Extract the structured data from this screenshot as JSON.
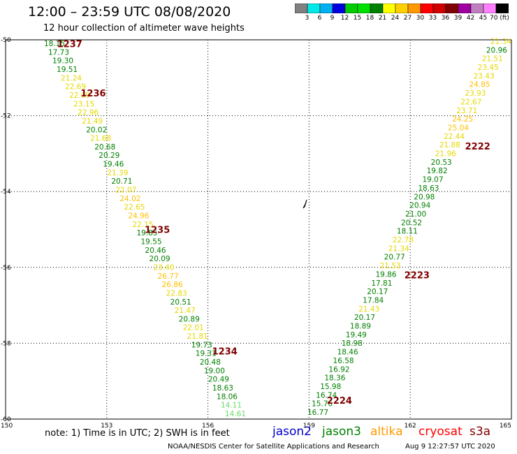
{
  "title": "12:00 – 23:59 UTC 08/08/2020",
  "subtitle": "12 hour collection of altimeter wave heights",
  "colorbar": {
    "colors": [
      "#808080",
      "#00e8e8",
      "#00b0f0",
      "#0000e0",
      "#00cc00",
      "#00e000",
      "#008000",
      "#ffff00",
      "#ffd000",
      "#ff9900",
      "#ff0000",
      "#d00000",
      "#800000",
      "#a000a0",
      "#c080c0",
      "#ff80ff",
      "#000000"
    ],
    "labels": [
      "3",
      "6",
      "9",
      "12",
      "15",
      "18",
      "21",
      "24",
      "27",
      "30",
      "33",
      "36",
      "39",
      "42",
      "45",
      "70 (ft)"
    ]
  },
  "axes": {
    "x_ticks": [
      "150",
      "153",
      "156",
      "159",
      "162",
      "165"
    ],
    "y_ticks": [
      "-50",
      "-52",
      "-54",
      "-56",
      "-58",
      "-60"
    ]
  },
  "track_colors": {
    "green": "#008000",
    "light_green": "#66dd66",
    "yellow": "#e6d800",
    "orange": "#ffc000",
    "maroon": "#800000"
  },
  "pass_labels": [
    {
      "text": "1237",
      "lon": 151.9,
      "lat": -50.1
    },
    {
      "text": "1236",
      "lon": 152.6,
      "lat": -51.4
    },
    {
      "text": "1235",
      "lon": 154.5,
      "lat": -55.0
    },
    {
      "text": "1234",
      "lon": 156.5,
      "lat": -58.2
    },
    {
      "text": "2222",
      "lon": 164.0,
      "lat": -52.8
    },
    {
      "text": "2223",
      "lon": 162.2,
      "lat": -56.2
    },
    {
      "text": "2224",
      "lon": 159.9,
      "lat": -59.5
    }
  ],
  "west_track": [
    {
      "v": "18.15",
      "c": "green"
    },
    {
      "v": "17.73",
      "c": "green"
    },
    {
      "v": "19.30",
      "c": "green"
    },
    {
      "v": "19.51",
      "c": "green"
    },
    {
      "v": "21.24",
      "c": "yellow"
    },
    {
      "v": "22.69",
      "c": "yellow"
    },
    {
      "v": "22.09",
      "c": "yellow"
    },
    {
      "v": "23.15",
      "c": "yellow"
    },
    {
      "v": "22.96",
      "c": "yellow"
    },
    {
      "v": "21.49",
      "c": "yellow"
    },
    {
      "v": "20.02",
      "c": "green"
    },
    {
      "v": "21.68",
      "c": "yellow"
    },
    {
      "v": "20.68",
      "c": "green"
    },
    {
      "v": "20.29",
      "c": "green"
    },
    {
      "v": "19.46",
      "c": "green"
    },
    {
      "v": "21.39",
      "c": "yellow"
    },
    {
      "v": "20.71",
      "c": "green"
    },
    {
      "v": "22.07",
      "c": "yellow"
    },
    {
      "v": "24.02",
      "c": "orange"
    },
    {
      "v": "22.65",
      "c": "yellow"
    },
    {
      "v": "24.96",
      "c": "orange"
    },
    {
      "v": "22.15",
      "c": "yellow"
    },
    {
      "v": "19.85",
      "c": "green"
    },
    {
      "v": "19.55",
      "c": "green"
    },
    {
      "v": "20.46",
      "c": "green"
    },
    {
      "v": "20.09",
      "c": "green"
    },
    {
      "v": "23.40",
      "c": "yellow"
    },
    {
      "v": "26.77",
      "c": "orange"
    },
    {
      "v": "26.86",
      "c": "orange"
    },
    {
      "v": "22.83",
      "c": "yellow"
    },
    {
      "v": "20.51",
      "c": "green"
    },
    {
      "v": "21.47",
      "c": "yellow"
    },
    {
      "v": "20.89",
      "c": "green"
    },
    {
      "v": "22.01",
      "c": "yellow"
    },
    {
      "v": "21.81",
      "c": "yellow"
    },
    {
      "v": "19.73",
      "c": "green"
    },
    {
      "v": "19.31",
      "c": "green"
    },
    {
      "v": "20.48",
      "c": "green"
    },
    {
      "v": "19.00",
      "c": "green"
    },
    {
      "v": "20.49",
      "c": "green"
    },
    {
      "v": "18.63",
      "c": "green"
    },
    {
      "v": "18.06",
      "c": "green"
    },
    {
      "v": "14.11",
      "c": "light_green"
    },
    {
      "v": "14.61",
      "c": "light_green"
    }
  ],
  "east_track": [
    {
      "v": "21.34",
      "c": "yellow"
    },
    {
      "v": "20.96",
      "c": "green"
    },
    {
      "v": "21.51",
      "c": "yellow"
    },
    {
      "v": "23.45",
      "c": "yellow"
    },
    {
      "v": "23.43",
      "c": "yellow"
    },
    {
      "v": "24.85",
      "c": "orange"
    },
    {
      "v": "23.93",
      "c": "yellow"
    },
    {
      "v": "22.67",
      "c": "yellow"
    },
    {
      "v": "23.71",
      "c": "yellow"
    },
    {
      "v": "24.25",
      "c": "orange"
    },
    {
      "v": "25.04",
      "c": "orange"
    },
    {
      "v": "22.44",
      "c": "yellow"
    },
    {
      "v": "21.88",
      "c": "yellow"
    },
    {
      "v": "21.96",
      "c": "yellow"
    },
    {
      "v": "20.53",
      "c": "green"
    },
    {
      "v": "19.82",
      "c": "green"
    },
    {
      "v": "19.07",
      "c": "green"
    },
    {
      "v": "18.63",
      "c": "green"
    },
    {
      "v": "20.98",
      "c": "green"
    },
    {
      "v": "20.94",
      "c": "green"
    },
    {
      "v": "21.00",
      "c": "green"
    },
    {
      "v": "20.52",
      "c": "green"
    },
    {
      "v": "18.11",
      "c": "green"
    },
    {
      "v": "22.78",
      "c": "yellow"
    },
    {
      "v": "21.34",
      "c": "yellow"
    },
    {
      "v": "20.77",
      "c": "green"
    },
    {
      "v": "21.53",
      "c": "yellow"
    },
    {
      "v": "19.86",
      "c": "green"
    },
    {
      "v": "17.81",
      "c": "green"
    },
    {
      "v": "20.17",
      "c": "green"
    },
    {
      "v": "17.84",
      "c": "green"
    },
    {
      "v": "21.43",
      "c": "yellow"
    },
    {
      "v": "20.17",
      "c": "green"
    },
    {
      "v": "18.89",
      "c": "green"
    },
    {
      "v": "19.49",
      "c": "green"
    },
    {
      "v": "18.98",
      "c": "green"
    },
    {
      "v": "18.46",
      "c": "green"
    },
    {
      "v": "16.58",
      "c": "green"
    },
    {
      "v": "16.92",
      "c": "green"
    },
    {
      "v": "18.36",
      "c": "green"
    },
    {
      "v": "15.98",
      "c": "green"
    },
    {
      "v": "16.74",
      "c": "green"
    },
    {
      "v": "15.76",
      "c": "green"
    },
    {
      "v": "16.77",
      "c": "green"
    }
  ],
  "footer": {
    "note": "note:  1) Time is in UTC;  2) SWH is in feet",
    "legend": [
      {
        "text": "jason2",
        "color": "#0000cc"
      },
      {
        "text": "jason3",
        "color": "#008000"
      },
      {
        "text": "altika",
        "color": "#ff9900"
      },
      {
        "text": "cryosat",
        "color": "#ff0000"
      },
      {
        "text": "s3a",
        "color": "#800000"
      }
    ],
    "credit": "NOAA/NESDIS Center for Satellite Applications and Research",
    "timestamp": "Aug  9 12:27:57 UTC 2020"
  }
}
